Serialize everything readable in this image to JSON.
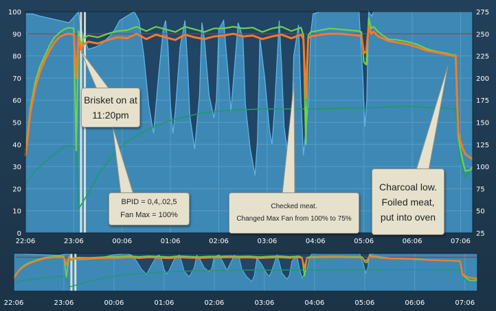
{
  "chart_data": [
    {
      "type": "line",
      "panel": "main",
      "x_unit": "hours after 22:00",
      "xlim": [
        0.1,
        9.35
      ],
      "x_ticks": [
        {
          "x": 0.1,
          "label": "22:06"
        },
        {
          "x": 1.1,
          "label": "23:06"
        },
        {
          "x": 2.1,
          "label": "00:06"
        },
        {
          "x": 3.1,
          "label": "01:06"
        },
        {
          "x": 4.1,
          "label": "02:06"
        },
        {
          "x": 5.1,
          "label": "03:06"
        },
        {
          "x": 6.1,
          "label": "04:06"
        },
        {
          "x": 7.1,
          "label": "05:06"
        },
        {
          "x": 8.1,
          "label": "06:06"
        },
        {
          "x": 9.1,
          "label": "07:06"
        }
      ],
      "ylim_left": [
        0,
        100
      ],
      "yticks_left": [
        0,
        10,
        20,
        30,
        40,
        50,
        60,
        70,
        80,
        90,
        100
      ],
      "ylim_right": [
        25,
        275
      ],
      "yticks_right": [
        25,
        50,
        75,
        100,
        125,
        150,
        175,
        200,
        225,
        250,
        275
      ],
      "grid": true,
      "colors": {
        "fan": "#5fb4e8",
        "fan_fill": "#1d3f5e",
        "pit": "#6fd24a",
        "meat": "#f07d2a",
        "setpoint": "#b0303a",
        "food_line": "#1f9a66",
        "plot_bg": "#3d88b5"
      },
      "series": [
        {
          "key": "fan",
          "axis": "left",
          "x": [
            0.1,
            0.25,
            0.4,
            0.6,
            0.8,
            1.0,
            1.2,
            1.25,
            1.4,
            1.55,
            1.65,
            1.75,
            1.85,
            1.95,
            2.05,
            2.2,
            2.35,
            2.45,
            2.55,
            2.65,
            2.75,
            2.85,
            2.95,
            3.0,
            3.05,
            3.1,
            3.15,
            3.2,
            3.3,
            3.4,
            3.45,
            3.5,
            3.6,
            3.7,
            3.75,
            3.8,
            3.9,
            4.0,
            4.05,
            4.1,
            4.2,
            4.3,
            4.35,
            4.4,
            4.5,
            4.6,
            4.65,
            4.75,
            4.85,
            4.9,
            4.95,
            5.05,
            5.15,
            5.2,
            5.25,
            5.35,
            5.4,
            5.45,
            5.55,
            5.6,
            5.65,
            5.75,
            5.8,
            5.85,
            5.95,
            6.0,
            6.05,
            6.2,
            6.4,
            6.6,
            6.8,
            7.0,
            7.08,
            7.12,
            7.16,
            7.2,
            7.26,
            7.3,
            7.4,
            7.5,
            7.7,
            8.0,
            8.3,
            8.6,
            8.75,
            8.9,
            9.02,
            9.06,
            9.12,
            9.2,
            9.3,
            9.35
          ],
          "y": [
            99,
            99,
            98,
            97,
            96,
            95,
            100,
            92,
            83,
            84,
            85,
            87,
            89,
            92,
            96,
            98,
            100,
            96,
            80,
            58,
            45,
            70,
            92,
            96,
            84,
            58,
            45,
            55,
            84,
            96,
            78,
            53,
            38,
            62,
            95,
            88,
            62,
            52,
            60,
            92,
            96,
            70,
            55,
            68,
            95,
            88,
            58,
            38,
            26,
            42,
            88,
            70,
            46,
            40,
            55,
            96,
            75,
            48,
            32,
            42,
            80,
            94,
            60,
            35,
            58,
            90,
            99,
            100,
            100,
            100,
            100,
            100,
            70,
            48,
            60,
            100,
            98,
            100,
            100,
            100,
            100,
            100,
            100,
            100,
            100,
            100,
            100,
            100,
            100,
            100,
            100,
            100
          ]
        },
        {
          "key": "pit",
          "axis": "right",
          "x": [
            0.1,
            0.15,
            0.2,
            0.3,
            0.4,
            0.5,
            0.6,
            0.7,
            0.8,
            0.9,
            1.0,
            1.1,
            1.15,
            1.2,
            1.25,
            1.3,
            1.4,
            1.6,
            1.8,
            2.0,
            2.2,
            2.4,
            2.6,
            2.8,
            3.0,
            3.2,
            3.4,
            3.6,
            3.8,
            4.0,
            4.2,
            4.4,
            4.6,
            4.8,
            5.0,
            5.2,
            5.4,
            5.6,
            5.8,
            5.85,
            5.9,
            5.95,
            6.0,
            6.2,
            6.4,
            6.6,
            6.8,
            7.0,
            7.05,
            7.1,
            7.15,
            7.2,
            7.25,
            7.3,
            7.4,
            7.6,
            7.8,
            8.0,
            8.2,
            8.4,
            8.6,
            8.8,
            8.95,
            9.0,
            9.05,
            9.1,
            9.15,
            9.2,
            9.3,
            9.35
          ],
          "y": [
            118,
            140,
            165,
            195,
            213,
            225,
            237,
            246,
            251,
            255,
            257,
            256,
            118,
            253,
            237,
            245,
            248,
            246,
            250,
            253,
            254,
            258,
            253,
            258,
            255,
            252,
            258,
            255,
            252,
            256,
            256,
            258,
            256,
            257,
            252,
            256,
            258,
            253,
            257,
            248,
            125,
            248,
            252,
            254,
            256,
            255,
            254,
            253,
            252,
            218,
            215,
            268,
            256,
            258,
            252,
            244,
            243,
            241,
            238,
            233,
            230,
            228,
            226,
            226,
            135,
            118,
            105,
            95,
            96,
            100
          ]
        },
        {
          "key": "meat",
          "axis": "right",
          "x": [
            0.1,
            0.15,
            0.2,
            0.3,
            0.4,
            0.5,
            0.6,
            0.7,
            0.8,
            0.9,
            1.0,
            1.1,
            1.15,
            1.2,
            1.25,
            1.3,
            1.4,
            1.6,
            1.8,
            2.0,
            2.2,
            2.4,
            2.6,
            2.8,
            3.0,
            3.2,
            3.4,
            3.6,
            3.8,
            4.0,
            4.2,
            4.4,
            4.6,
            4.8,
            5.0,
            5.2,
            5.4,
            5.6,
            5.8,
            5.85,
            5.9,
            5.95,
            6.0,
            6.2,
            6.4,
            6.6,
            6.8,
            7.0,
            7.05,
            7.1,
            7.15,
            7.2,
            7.25,
            7.3,
            7.4,
            7.6,
            7.8,
            8.0,
            8.2,
            8.4,
            8.6,
            8.8,
            8.95,
            9.0,
            9.05,
            9.1,
            9.15,
            9.2,
            9.3,
            9.35
          ],
          "y": [
            112,
            135,
            160,
            188,
            207,
            220,
            231,
            240,
            246,
            249,
            250,
            249,
            200,
            246,
            232,
            238,
            241,
            239,
            243,
            246,
            245,
            250,
            244,
            249,
            246,
            243,
            249,
            246,
            244,
            247,
            248,
            250,
            247,
            248,
            244,
            247,
            249,
            245,
            249,
            244,
            178,
            245,
            247,
            249,
            250,
            250,
            249,
            248,
            247,
            228,
            230,
            258,
            250,
            252,
            247,
            242,
            240,
            238,
            235,
            231,
            229,
            227,
            225,
            225,
            140,
            128,
            120,
            114,
            110,
            108
          ]
        },
        {
          "key": "food_line",
          "axis": "right",
          "x": [
            0.1,
            0.3,
            0.6,
            0.9,
            1.05,
            1.15,
            1.2,
            1.4,
            1.6,
            1.8,
            2.0,
            2.2,
            2.5,
            2.8,
            3.1,
            3.4,
            3.7,
            4.0,
            4.5,
            5.0,
            6.0,
            7.0,
            8.0,
            9.0,
            9.1,
            9.2,
            9.3
          ],
          "y": [
            80,
            95,
            110,
            122,
            124,
            120,
            52,
            70,
            90,
            105,
            118,
            128,
            138,
            146,
            152,
            156,
            160,
            162,
            164,
            165,
            165,
            166,
            168,
            165,
            105,
            88,
            95
          ]
        }
      ],
      "setpoint_y_right": 250,
      "vertical_markers": [
        1.25,
        1.33
      ],
      "annotations": [
        {
          "text": "Brisket on at\n11:20pm"
        },
        {
          "text": "BPID = 0,4,.02,5\nFan Max = 100%"
        },
        {
          "text": "Checked meat.\nChanged Max Fan from 100% to 75%"
        },
        {
          "text": "Charcoal low.\nFoiled meat,\nput into oven"
        }
      ]
    },
    {
      "type": "line",
      "panel": "overview",
      "x_unit": "hours after 22:00",
      "xlim": [
        0.1,
        9.35
      ],
      "x_ticks": [
        {
          "x": 0.1,
          "label": "22:06"
        },
        {
          "x": 1.1,
          "label": "23:06"
        },
        {
          "x": 2.1,
          "label": "00:06"
        },
        {
          "x": 3.1,
          "label": "01:06"
        },
        {
          "x": 4.1,
          "label": "02:06"
        },
        {
          "x": 5.1,
          "label": "03:06"
        },
        {
          "x": 6.1,
          "label": "04:06"
        },
        {
          "x": 7.1,
          "label": "05:06"
        },
        {
          "x": 8.1,
          "label": "06:06"
        },
        {
          "x": 9.1,
          "label": "07:06"
        }
      ],
      "note": "overview navigator repeats the main series"
    }
  ]
}
